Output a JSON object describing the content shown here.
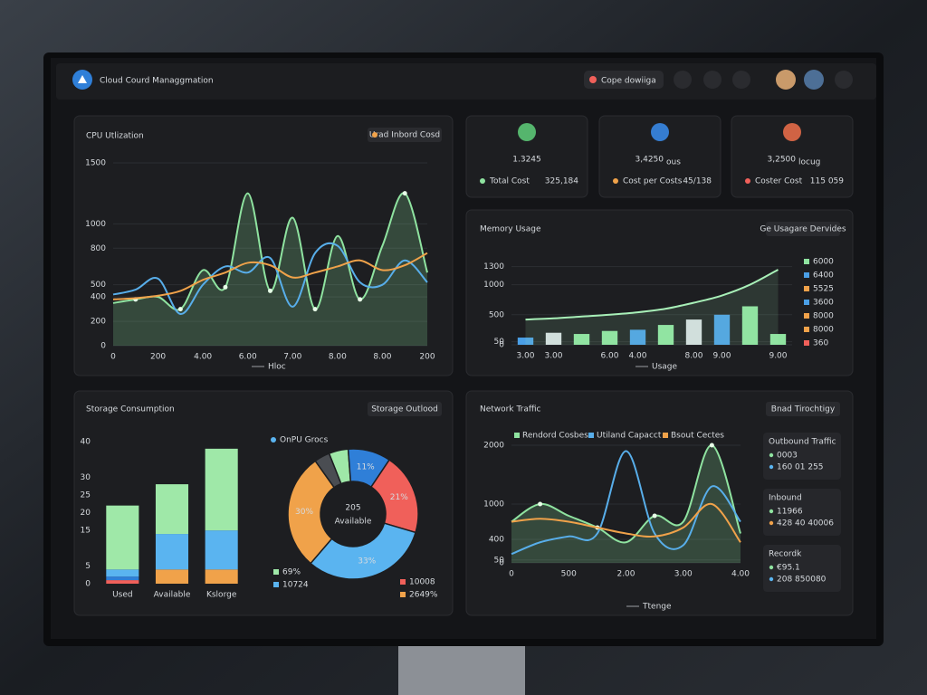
{
  "header": {
    "title": "Cloud Courd Managgmation",
    "dropdown": "Cope dowiiga"
  },
  "kpis": [
    {
      "value": "1.3245",
      "label": "Total Cost",
      "delta": "325,184"
    },
    {
      "value": "3,4250",
      "unit": "ous",
      "label": "Cost per Costs",
      "delta": "45/138"
    },
    {
      "value": "3,2500",
      "unit": "locug",
      "label": "Coster Cost",
      "delta": "115 059"
    }
  ],
  "network_cards": [
    {
      "title": "Outbound Traffic",
      "rows": [
        "0003",
        "160 01 255"
      ]
    },
    {
      "title": "Inbound",
      "rows": [
        "11966",
        "428 40 40006"
      ]
    },
    {
      "title": "Recordk",
      "rows": [
        "€95.1",
        "208 850080"
      ]
    }
  ],
  "chart_data": [
    {
      "type": "line",
      "title": "CPU Utlization",
      "badge": "Urad Inbord Cosd",
      "footer_legend": "Hloc",
      "categories": [
        "0",
        null,
        "200",
        null,
        "4.00",
        null,
        "6.00",
        null,
        "7.00",
        null,
        "8.00",
        null,
        "8.00",
        null,
        "200"
      ],
      "series": [
        {
          "color": "#8fe3a0",
          "fill": true,
          "values": [
            350,
            380,
            400,
            300,
            620,
            480,
            1250,
            450,
            1050,
            300,
            900,
            380,
            820,
            1250,
            600
          ]
        },
        {
          "color": "#58aeea",
          "values": [
            420,
            460,
            550,
            260,
            500,
            650,
            600,
            720,
            320,
            760,
            820,
            520,
            500,
            700,
            520
          ]
        },
        {
          "color": "#f0a24a",
          "values": [
            380,
            390,
            410,
            450,
            540,
            600,
            680,
            660,
            560,
            600,
            650,
            700,
            620,
            660,
            760
          ]
        }
      ],
      "ylim": [
        0,
        1500
      ],
      "yticks": [
        0,
        200,
        400,
        500,
        800,
        1000,
        1500
      ],
      "grid": true
    },
    {
      "type": "bar",
      "title": "Memory Usage",
      "badge": "Ge Usagare Dervides",
      "footer_legend": "Usage",
      "categories": [
        "3.00",
        "3.00",
        null,
        "6.00",
        "4.00",
        null,
        "8.00",
        "9.00",
        null,
        "9.00"
      ],
      "values": [
        120,
        200,
        180,
        230,
        250,
        330,
        420,
        500,
        640,
        180
      ],
      "colors": [
        "#4a9fe6",
        "#d8dde2",
        "#8fe3a0",
        "#8fe3a0",
        "#4a9fe6",
        "#8fe3a0",
        "#d8dde2",
        "#4a9fe6",
        "#8fe3a0",
        "#8fe3a0"
      ],
      "line": {
        "color": "#a8f0b8",
        "values": [
          420,
          440,
          470,
          500,
          540,
          600,
          700,
          820,
          1000,
          1250
        ]
      },
      "legend": [
        {
          "label": "6000",
          "color": "#8fe3a0"
        },
        {
          "label": "6400",
          "color": "#4a9fe6"
        },
        {
          "label": "5525",
          "color": "#f0a24a"
        },
        {
          "label": "3600",
          "color": "#4a9fe6"
        },
        {
          "label": "8000",
          "color": "#f0a24a"
        },
        {
          "label": "8000",
          "color": "#f0a24a"
        },
        {
          "label": "360",
          "color": "#f0605a"
        }
      ],
      "ylim": [
        0,
        1400
      ],
      "yticks": [
        0,
        50,
        500,
        1000,
        1300
      ],
      "grid": true
    },
    {
      "type": "bar",
      "stacked": true,
      "title": "Storage Consumption",
      "badge": "Storage Outlood",
      "categories": [
        "Used",
        "Available",
        "Kslorge"
      ],
      "series": [
        {
          "color": "#f0605a",
          "values": [
            1,
            0,
            0
          ]
        },
        {
          "color": "#f0a24a",
          "values": [
            0,
            4,
            4
          ]
        },
        {
          "color": "#2f7fd8",
          "values": [
            1,
            0,
            0
          ]
        },
        {
          "color": "#5ab4f0",
          "values": [
            2,
            10,
            11
          ]
        },
        {
          "color": "#9fe8a8",
          "values": [
            18,
            14,
            23
          ]
        }
      ],
      "ylim": [
        0,
        40
      ],
      "yticks": [
        0,
        5,
        15,
        20,
        25,
        30,
        40
      ],
      "grid": false
    },
    {
      "type": "pie",
      "donut": true,
      "title": "OnPU Grocs",
      "center_value": "205",
      "center_label": "Available",
      "values": [
        5,
        11,
        21,
        33,
        30,
        4
      ],
      "value_labels": [
        null,
        "11%",
        "21%",
        "33%",
        "30%",
        null
      ],
      "colors": [
        "#9fe8a8",
        "#2f7fd8",
        "#f0605a",
        "#5ab4f0",
        "#f0a24a",
        "#4a4d52"
      ],
      "legend": [
        {
          "label": "69%",
          "color": "#9fe8a8"
        },
        {
          "label": "10724",
          "color": "#5ab4f0"
        },
        {
          "label": "10008",
          "color": "#f0605a"
        },
        {
          "label": "2649%",
          "color": "#f0a24a"
        }
      ]
    },
    {
      "type": "line",
      "title": "Network Traffic",
      "badge": "Bnad Tirochtigy",
      "footer_legend": "Ttenge",
      "categories": [
        "0",
        null,
        "500",
        null,
        "2.00",
        null,
        "3.00",
        null,
        "4.00"
      ],
      "series": [
        {
          "name": "Rendord Cosbes",
          "color": "#8fe3a0",
          "fill": true,
          "values": [
            700,
            1000,
            800,
            600,
            350,
            800,
            700,
            2000,
            500
          ]
        },
        {
          "name": "Utiland Capacct",
          "color": "#58aeea",
          "values": [
            150,
            350,
            450,
            500,
            1900,
            500,
            300,
            1300,
            700
          ]
        },
        {
          "name": "Bsout Cectes",
          "color": "#f0a24a",
          "values": [
            700,
            750,
            700,
            600,
            500,
            450,
            600,
            1000,
            350
          ]
        }
      ],
      "ylim": [
        0,
        2000
      ],
      "yticks": [
        0,
        50,
        400,
        1000,
        2000
      ],
      "grid": true
    }
  ]
}
